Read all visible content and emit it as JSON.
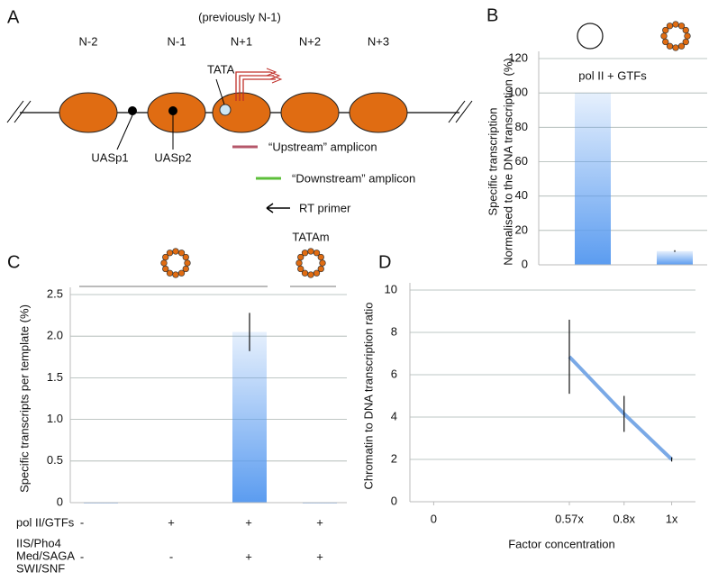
{
  "panel_labels": [
    "A",
    "B",
    "C",
    "D"
  ],
  "diagram": {
    "header": "(previously N-1)",
    "nucleosomes": [
      "N-2",
      "N-1",
      "N+1",
      "N+2",
      "N+3"
    ],
    "sites": {
      "tata": "TATA",
      "uasp1": "UASp1",
      "uasp2": "UASp2"
    },
    "legend": [
      "“Upstream” amplicon",
      "“Downstream” amplicon",
      "RT primer"
    ]
  },
  "chart_data": [
    {
      "type": "bar",
      "ylabel": [
        "Specific transcription",
        "Normalised to the DNA transcription (%)"
      ],
      "annotation": "pol II + GTFs",
      "categories": [
        null,
        null
      ],
      "series": [
        {
          "color": "#5b9cf0",
          "values": [
            100,
            8
          ],
          "errors": [
            null,
            0.5
          ]
        }
      ],
      "ylim": [
        0,
        120
      ],
      "yticks": [
        0,
        20,
        40,
        60,
        80,
        100,
        120
      ],
      "grid": true
    },
    {
      "type": "bar",
      "ylabel": [
        "Specific transcripts per template (%)"
      ],
      "annotation": "TATAm",
      "categories": [
        null,
        null,
        null,
        null
      ],
      "series": [
        {
          "color": "#5b9cf0",
          "values": [
            0,
            0.005,
            2.05,
            0
          ],
          "errors": [
            null,
            null,
            0.23,
            null
          ]
        }
      ],
      "ylim": [
        0,
        2.5
      ],
      "yticks": [
        0,
        0.5,
        {
          "value": 1,
          "label": "1.0"
        },
        1.5,
        {
          "value": 2,
          "label": "2.0"
        },
        2.5
      ],
      "grid": true,
      "condition_rows": [
        {
          "label": [
            "pol II/GTFs"
          ],
          "values": [
            "-",
            "+",
            "+",
            "+"
          ]
        },
        {
          "label": [
            "IIS/Pho4",
            "Med/SAGA",
            "SWI/SNF"
          ],
          "values": [
            "-",
            "-",
            "+",
            "+"
          ]
        }
      ]
    },
    {
      "type": "line",
      "xlabel": "Factor concentration",
      "ylabel": [
        "Chromatin to DNA transcription ratio"
      ],
      "x": [
        0.57,
        0.8,
        1
      ],
      "series": [
        {
          "color": "#7aa9e6",
          "values": [
            6.85,
            4.15,
            2.0
          ],
          "errors": [
            1.75,
            0.85,
            0.1
          ]
        }
      ],
      "xlim": [
        -0.1,
        1.1
      ],
      "xticks": [
        0,
        {
          "value": 0.57,
          "label": "0.57x"
        },
        {
          "value": 0.8,
          "label": "0.8x"
        },
        {
          "value": 1,
          "label": "1x"
        }
      ],
      "ylim": [
        0,
        10
      ],
      "yticks": [
        0,
        2,
        4,
        6,
        8,
        10
      ],
      "grid": true
    }
  ]
}
